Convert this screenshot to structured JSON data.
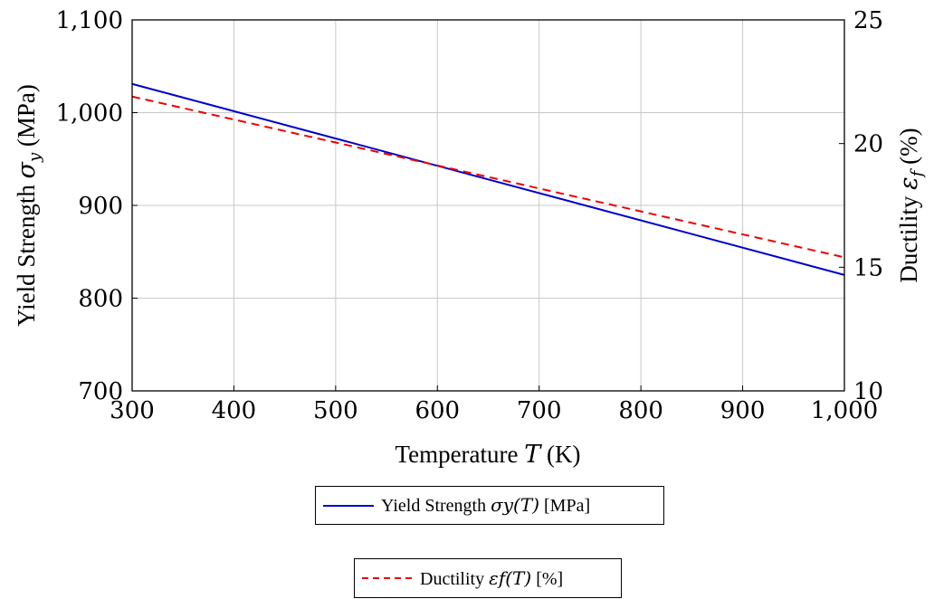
{
  "chart_data": {
    "type": "line",
    "xlabel": "Temperature T (K)",
    "ylabel_left": "Yield Strength σ_y (MPa)",
    "ylabel_right": "Ductility ε_f (%)",
    "xlim": [
      300,
      1000
    ],
    "ylim_left": [
      700,
      1100
    ],
    "ylim_right": [
      10,
      25
    ],
    "grid": true,
    "x_ticks": [
      "300",
      "400",
      "500",
      "600",
      "700",
      "800",
      "900",
      "1,000"
    ],
    "y_ticks_left": [
      "700",
      "800",
      "900",
      "1,000",
      "1,100"
    ],
    "y_ticks_right": [
      "10",
      "15",
      "20",
      "25"
    ],
    "x_tick_values": [
      300,
      400,
      500,
      600,
      700,
      800,
      900,
      1000
    ],
    "y_tick_values_left": [
      700,
      800,
      900,
      1000,
      1100
    ],
    "y_tick_values_right": [
      10,
      15,
      20,
      25
    ],
    "series": [
      {
        "name": "Yield Strength σy(T) [MPa]",
        "axis": "left",
        "color": "#0000cc",
        "style": "solid",
        "x": [
          300,
          1000
        ],
        "y": [
          1031,
          825
        ]
      },
      {
        "name": "Ductility εf(T) [%]",
        "axis": "right",
        "color": "#ee0000",
        "style": "dashed",
        "x": [
          300,
          1000
        ],
        "y": [
          21.9,
          15.4
        ]
      }
    ],
    "legend_placement": "below"
  },
  "labels": {
    "xlabel_prefix": "Temperature ",
    "xlabel_var": "T",
    "xlabel_unit": " (K)",
    "ylabel_left_prefix": "Yield Strength ",
    "ylabel_left_var": "σ",
    "ylabel_left_sub": "y",
    "ylabel_left_unit": " (MPa)",
    "ylabel_right_prefix": "Ductility ",
    "ylabel_right_var": "ε",
    "ylabel_right_sub": "f",
    "ylabel_right_unit": " (%)"
  },
  "legend": {
    "entry1_prefix": "Yield Strength ",
    "entry1_math": "σy(T)",
    "entry1_unit": " [MPa]",
    "entry2_prefix": "Ductility ",
    "entry2_math": "εf(T)",
    "entry2_unit": " [%]"
  }
}
